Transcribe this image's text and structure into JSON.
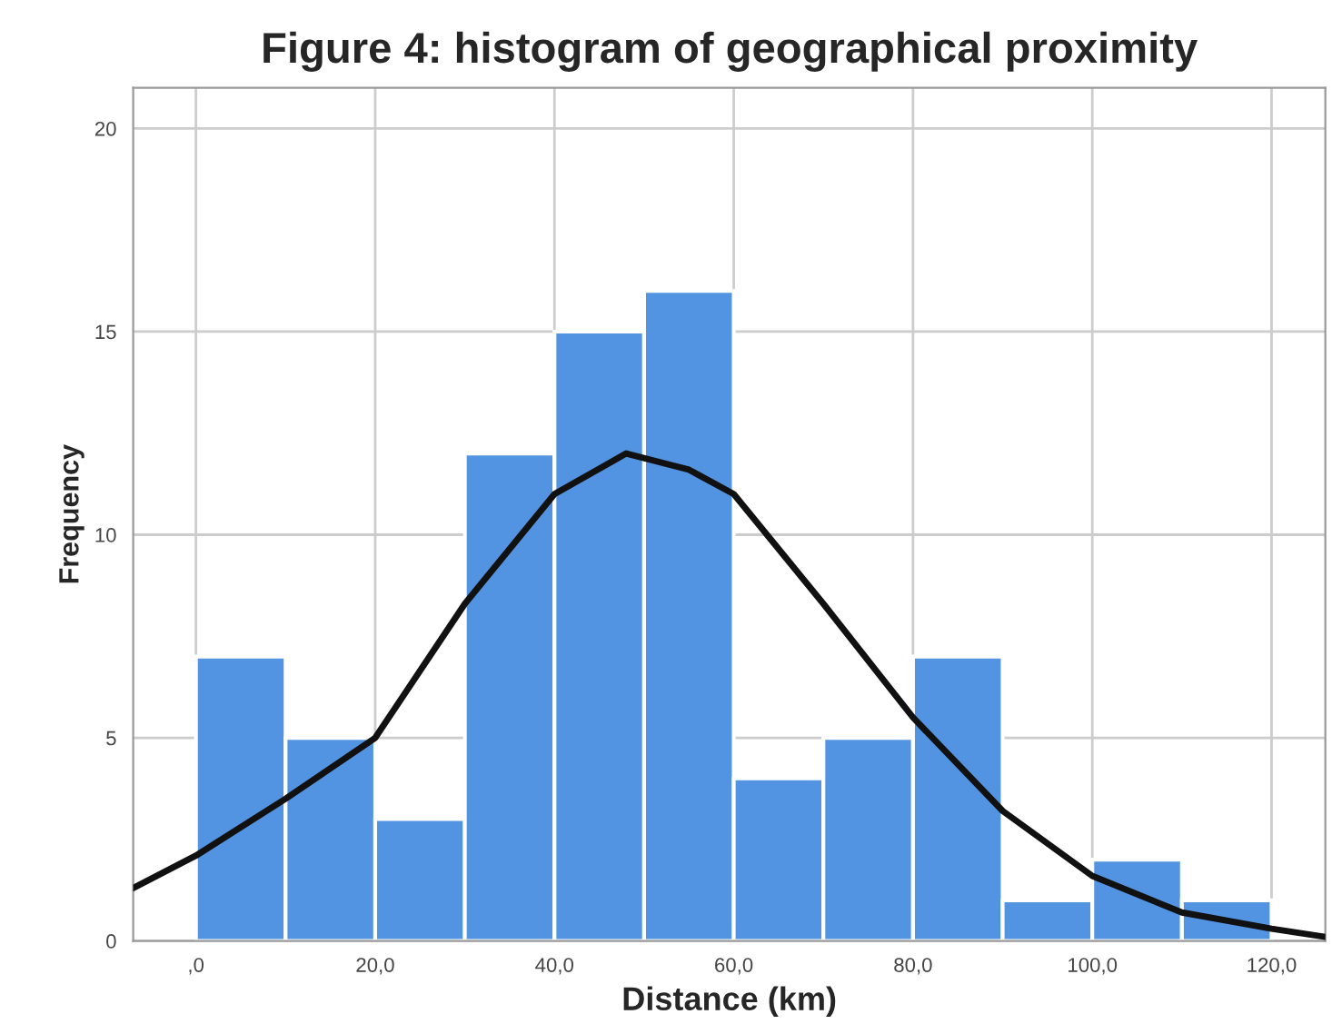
{
  "chart_data": {
    "type": "histogram",
    "title": "Figure 4: histogram of geographical proximity",
    "xlabel": "Distance (km)",
    "ylabel": "Frequency",
    "bins": [
      0,
      10,
      20,
      30,
      40,
      50,
      60,
      70,
      80,
      90,
      100,
      110,
      120
    ],
    "values": [
      7,
      5,
      3,
      12,
      15,
      16,
      4,
      5,
      7,
      1,
      2,
      1
    ],
    "color": "#5294e2",
    "series": [
      {
        "type": "line",
        "color": "#111111",
        "x": [
          -7,
          0,
          10,
          20,
          30,
          40,
          48,
          55,
          60,
          70,
          80,
          90,
          100,
          110,
          120,
          126
        ],
        "values": [
          1.3,
          2.1,
          3.5,
          5.0,
          8.3,
          11.0,
          12.0,
          11.6,
          11.0,
          8.3,
          5.5,
          3.2,
          1.6,
          0.7,
          0.3,
          0.1
        ]
      }
    ],
    "xlim": [
      -7,
      126
    ],
    "ylim": [
      0,
      21
    ],
    "xticks": [
      {
        "value": 0,
        "label": ",0"
      },
      {
        "value": 20,
        "label": "20,0"
      },
      {
        "value": 40,
        "label": "40,0"
      },
      {
        "value": 60,
        "label": "60,0"
      },
      {
        "value": 80,
        "label": "80,0"
      },
      {
        "value": 100,
        "label": "100,0"
      },
      {
        "value": 120,
        "label": "120,0"
      }
    ],
    "yticks": [
      0,
      5,
      10,
      15,
      20
    ],
    "grid": true,
    "legend": false
  }
}
